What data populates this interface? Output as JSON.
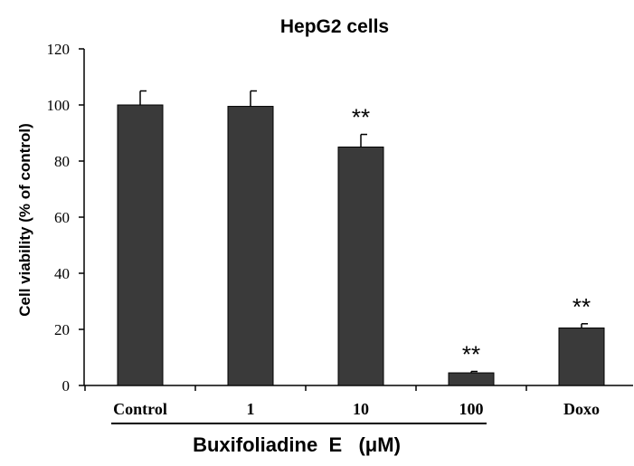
{
  "chart_data": {
    "type": "bar",
    "title": "HepG2 cells",
    "ylabel": "Cell viability (% of control)",
    "group_label": "Buxifoliadine  E   (μM)",
    "categories": [
      "Control",
      "1",
      "10",
      "100",
      "Doxo"
    ],
    "values": [
      100,
      99.5,
      85,
      4.5,
      20.5
    ],
    "errors": [
      5,
      5.5,
      4.5,
      0.5,
      1.5
    ],
    "significance": [
      "",
      "",
      "**",
      "**",
      "**"
    ],
    "ylim": [
      0,
      120
    ],
    "yticks": [
      "0",
      "20",
      "40",
      "60",
      "80",
      "100",
      "120"
    ],
    "bar_color": "#3a3a3a",
    "grid": false,
    "legend": "none"
  }
}
